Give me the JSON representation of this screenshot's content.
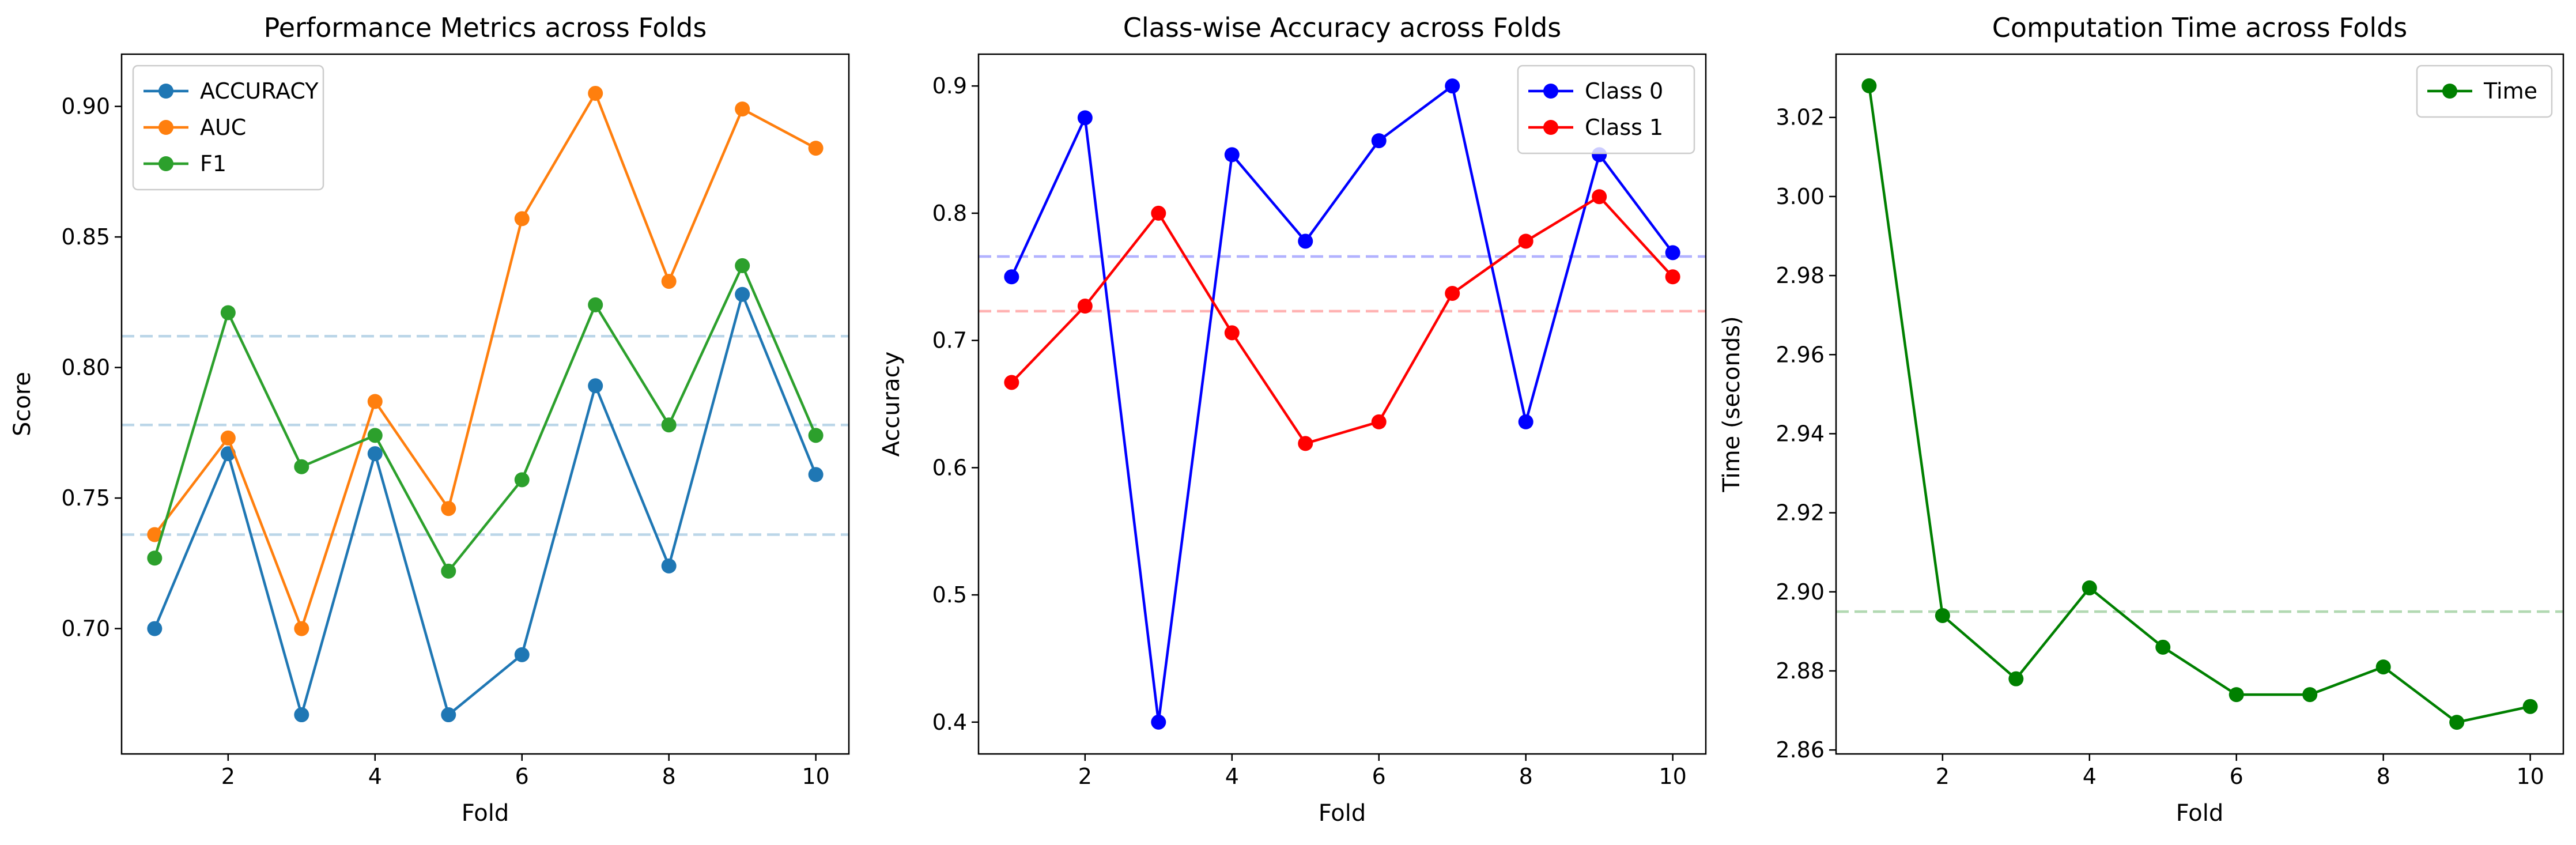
{
  "chart_data": [
    {
      "type": "line",
      "title": "Performance Metrics across Folds",
      "xlabel": "Fold",
      "ylabel": "Score",
      "x": [
        1,
        2,
        3,
        4,
        5,
        6,
        7,
        8,
        9,
        10
      ],
      "xlim": [
        0.55,
        10.45
      ],
      "ylim": [
        0.652,
        0.92
      ],
      "xticks": [
        2,
        4,
        6,
        8,
        10
      ],
      "xtick_labels": [
        "2",
        "4",
        "6",
        "8",
        "10"
      ],
      "yticks": [
        0.7,
        0.75,
        0.8,
        0.85,
        0.9
      ],
      "ytick_labels": [
        "0.70",
        "0.75",
        "0.80",
        "0.85",
        "0.90"
      ],
      "grid": false,
      "legend_position": "upper-left",
      "series": [
        {
          "name": "ACCURACY",
          "color": "#1f77b4",
          "values": [
            0.7,
            0.767,
            0.667,
            0.767,
            0.667,
            0.69,
            0.793,
            0.724,
            0.828,
            0.759
          ]
        },
        {
          "name": "AUC",
          "color": "#ff7f0e",
          "values": [
            0.736,
            0.773,
            0.7,
            0.787,
            0.746,
            0.857,
            0.905,
            0.833,
            0.899,
            0.884
          ]
        },
        {
          "name": "F1",
          "color": "#2ca02c",
          "values": [
            0.727,
            0.821,
            0.762,
            0.774,
            0.722,
            0.757,
            0.824,
            0.778,
            0.839,
            0.774
          ]
        }
      ],
      "mean_lines": [
        {
          "value": 0.736,
          "color": "#1f77b4"
        },
        {
          "value": 0.778,
          "color": "#1f77b4"
        },
        {
          "value": 0.812,
          "color": "#1f77b4"
        }
      ]
    },
    {
      "type": "line",
      "title": "Class-wise Accuracy across Folds",
      "xlabel": "Fold",
      "ylabel": "Accuracy",
      "x": [
        1,
        2,
        3,
        4,
        5,
        6,
        7,
        8,
        9,
        10
      ],
      "xlim": [
        0.55,
        10.45
      ],
      "ylim": [
        0.375,
        0.925
      ],
      "xticks": [
        2,
        4,
        6,
        8,
        10
      ],
      "xtick_labels": [
        "2",
        "4",
        "6",
        "8",
        "10"
      ],
      "yticks": [
        0.4,
        0.5,
        0.6,
        0.7,
        0.8,
        0.9
      ],
      "ytick_labels": [
        "0.4",
        "0.5",
        "0.6",
        "0.7",
        "0.8",
        "0.9"
      ],
      "grid": false,
      "legend_position": "upper-right",
      "series": [
        {
          "name": "Class 0",
          "color": "#0000ff",
          "values": [
            0.75,
            0.875,
            0.4,
            0.846,
            0.778,
            0.857,
            0.9,
            0.636,
            0.846,
            0.769
          ]
        },
        {
          "name": "Class 1",
          "color": "#ff0000",
          "values": [
            0.667,
            0.727,
            0.8,
            0.706,
            0.619,
            0.636,
            0.737,
            0.778,
            0.813,
            0.75
          ]
        }
      ],
      "mean_lines": [
        {
          "value": 0.766,
          "color": "#0000ff"
        },
        {
          "value": 0.723,
          "color": "#ff0000"
        }
      ]
    },
    {
      "type": "line",
      "title": "Computation Time across Folds",
      "xlabel": "Fold",
      "ylabel": "Time (seconds)",
      "x": [
        1,
        2,
        3,
        4,
        5,
        6,
        7,
        8,
        9,
        10
      ],
      "xlim": [
        0.55,
        10.45
      ],
      "ylim": [
        2.859,
        3.036
      ],
      "xticks": [
        2,
        4,
        6,
        8,
        10
      ],
      "xtick_labels": [
        "2",
        "4",
        "6",
        "8",
        "10"
      ],
      "yticks": [
        2.86,
        2.88,
        2.9,
        2.92,
        2.94,
        2.96,
        2.98,
        3.0,
        3.02
      ],
      "ytick_labels": [
        "2.86",
        "2.88",
        "2.90",
        "2.92",
        "2.94",
        "2.96",
        "2.98",
        "3.00",
        "3.02"
      ],
      "grid": false,
      "legend_position": "upper-right",
      "series": [
        {
          "name": "Time",
          "color": "#008000",
          "values": [
            3.028,
            2.894,
            2.878,
            2.901,
            2.886,
            2.874,
            2.874,
            2.881,
            2.867,
            2.871
          ]
        }
      ],
      "mean_lines": [
        {
          "value": 2.895,
          "color": "#008000"
        }
      ]
    }
  ]
}
